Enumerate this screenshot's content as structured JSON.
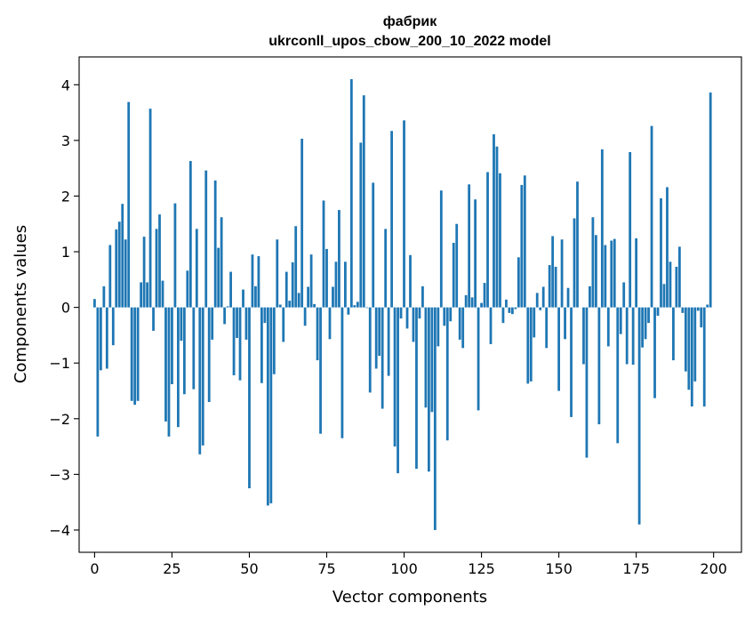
{
  "chart_data": {
    "type": "bar",
    "title_line1": "фабрик",
    "title_line2": "ukrconll_upos_cbow_200_10_2022 model",
    "xlabel": "Vector components",
    "ylabel": "Components values",
    "xlim": [
      -5,
      209
    ],
    "ylim": [
      -4.4,
      4.5
    ],
    "xticks": [
      0,
      25,
      50,
      75,
      100,
      125,
      150,
      175,
      200
    ],
    "xtick_labels": [
      "0",
      "25",
      "50",
      "75",
      "100",
      "125",
      "150",
      "175",
      "200"
    ],
    "yticks": [
      -4,
      -3,
      -2,
      -1,
      0,
      1,
      2,
      3,
      4
    ],
    "ytick_labels": [
      "−4",
      "−3",
      "−2",
      "−1",
      "0",
      "1",
      "2",
      "3",
      "4"
    ],
    "grid": false,
    "bar_color": "#1f77b4",
    "values": [
      0.15,
      -2.32,
      -1.13,
      0.38,
      -1.1,
      1.12,
      -0.68,
      1.4,
      1.54,
      1.86,
      1.22,
      3.69,
      -1.68,
      -1.75,
      -1.68,
      0.45,
      1.27,
      0.45,
      3.57,
      -0.42,
      1.41,
      1.67,
      0.48,
      -2.05,
      -2.32,
      -1.38,
      1.87,
      -2.15,
      -0.6,
      -1.56,
      0.66,
      2.63,
      -1.47,
      1.41,
      -2.64,
      -2.48,
      2.46,
      -1.7,
      -0.58,
      2.28,
      1.07,
      1.62,
      -0.3,
      0.02,
      0.64,
      -1.22,
      -0.55,
      -1.31,
      0.32,
      -0.58,
      -3.25,
      0.95,
      0.38,
      0.92,
      -1.36,
      -0.28,
      -3.56,
      -3.52,
      -1.2,
      1.22,
      0.05,
      -0.62,
      0.64,
      0.12,
      0.81,
      1.46,
      0.26,
      3.03,
      -0.33,
      0.37,
      0.95,
      0.06,
      -0.95,
      -2.27,
      1.92,
      1.05,
      -0.57,
      0.37,
      0.82,
      1.75,
      -2.35,
      0.82,
      -0.13,
      4.1,
      0.04,
      0.1,
      2.96,
      3.81,
      -0.01,
      -1.53,
      2.24,
      -1.1,
      -0.87,
      -1.82,
      1.41,
      -1.23,
      3.17,
      -2.5,
      -2.98,
      -0.2,
      3.36,
      -0.38,
      0.94,
      -0.62,
      -2.9,
      -0.2,
      0.38,
      -1.8,
      -2.95,
      -1.88,
      -4.0,
      -0.7,
      2.1,
      -0.33,
      -2.39,
      -0.25,
      1.16,
      1.5,
      -0.58,
      -0.73,
      0.22,
      2.21,
      0.18,
      1.94,
      -1.85,
      0.08,
      0.44,
      2.43,
      -0.66,
      3.11,
      2.89,
      2.41,
      -0.28,
      0.14,
      -0.1,
      -0.12,
      -0.03,
      0.9,
      2.2,
      2.37,
      -1.37,
      -1.33,
      -0.54,
      0.26,
      -0.05,
      0.37,
      -0.73,
      0.76,
      1.28,
      0.73,
      -1.5,
      1.22,
      -0.57,
      0.35,
      -1.97,
      1.6,
      2.26,
      0.0,
      -1.02,
      -2.7,
      0.38,
      1.62,
      1.3,
      -2.1,
      2.84,
      1.12,
      -0.7,
      1.2,
      1.23,
      -2.44,
      -0.48,
      0.45,
      -1.02,
      2.79,
      -1.03,
      1.24,
      -3.9,
      -0.72,
      -0.57,
      -0.28,
      3.26,
      -1.63,
      -0.15,
      1.96,
      0.42,
      2.16,
      0.82,
      -0.95,
      0.73,
      1.09,
      -0.1,
      -1.15,
      -1.48,
      -1.78,
      -1.33,
      -0.06,
      -0.36,
      -1.78,
      0.05,
      3.86
    ]
  }
}
